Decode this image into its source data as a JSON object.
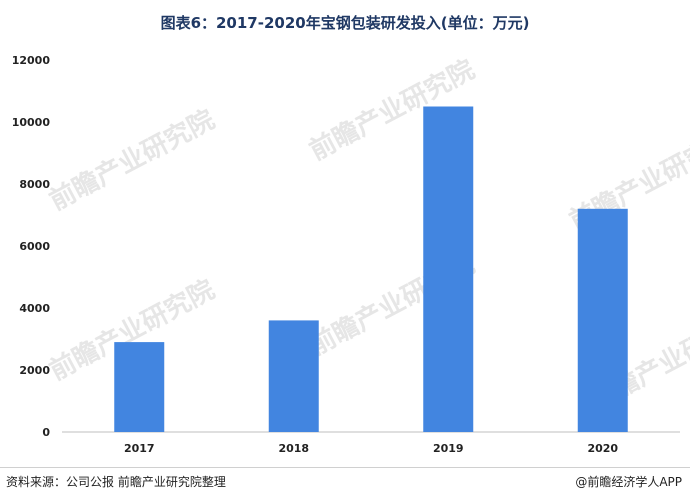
{
  "title": "图表6：2017-2020年宝钢包装研发投入(单位：万元)",
  "watermark": "前瞻产业研究院",
  "source": "资料来源：公司公报 前瞻产业研究院整理",
  "brand": "@前瞻经济学人APP",
  "colors": {
    "bar": "#4285e0",
    "axis": "#bfbfbf",
    "text": "#222222"
  },
  "chart_data": {
    "type": "bar",
    "categories": [
      "2017",
      "2018",
      "2019",
      "2020"
    ],
    "values": [
      2900,
      3600,
      10500,
      7200
    ],
    "ylim": [
      0,
      12000
    ],
    "yticks": [
      0,
      2000,
      4000,
      6000,
      8000,
      10000,
      12000
    ],
    "grid": false,
    "legend": "none"
  }
}
